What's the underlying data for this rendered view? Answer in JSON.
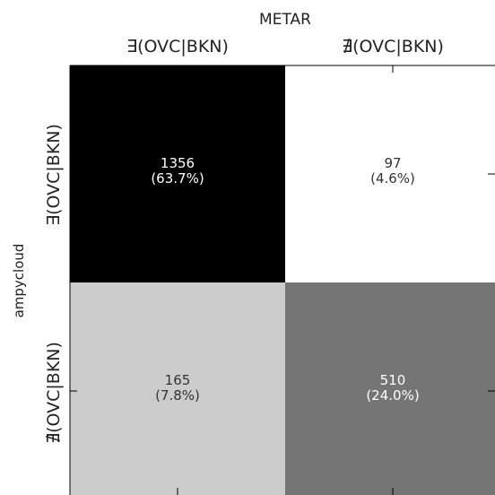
{
  "chart_data": {
    "type": "heatmap",
    "title": "",
    "x_axis_label": "METAR",
    "y_axis_label": "ampycloud",
    "x_categories": [
      "∃(OVC|BKN)",
      "∄(OVC|BKN)"
    ],
    "y_categories": [
      "∃(OVC|BKN)",
      "∄(OVC|BKN)"
    ],
    "counts": [
      [
        1356,
        97
      ],
      [
        165,
        510
      ]
    ],
    "percents": [
      "(63.7%)",
      "(4.6%)",
      "(7.8%)",
      "(24.0%)"
    ],
    "colormap": "grayscale: white = low count, black = high count",
    "grid": false
  }
}
